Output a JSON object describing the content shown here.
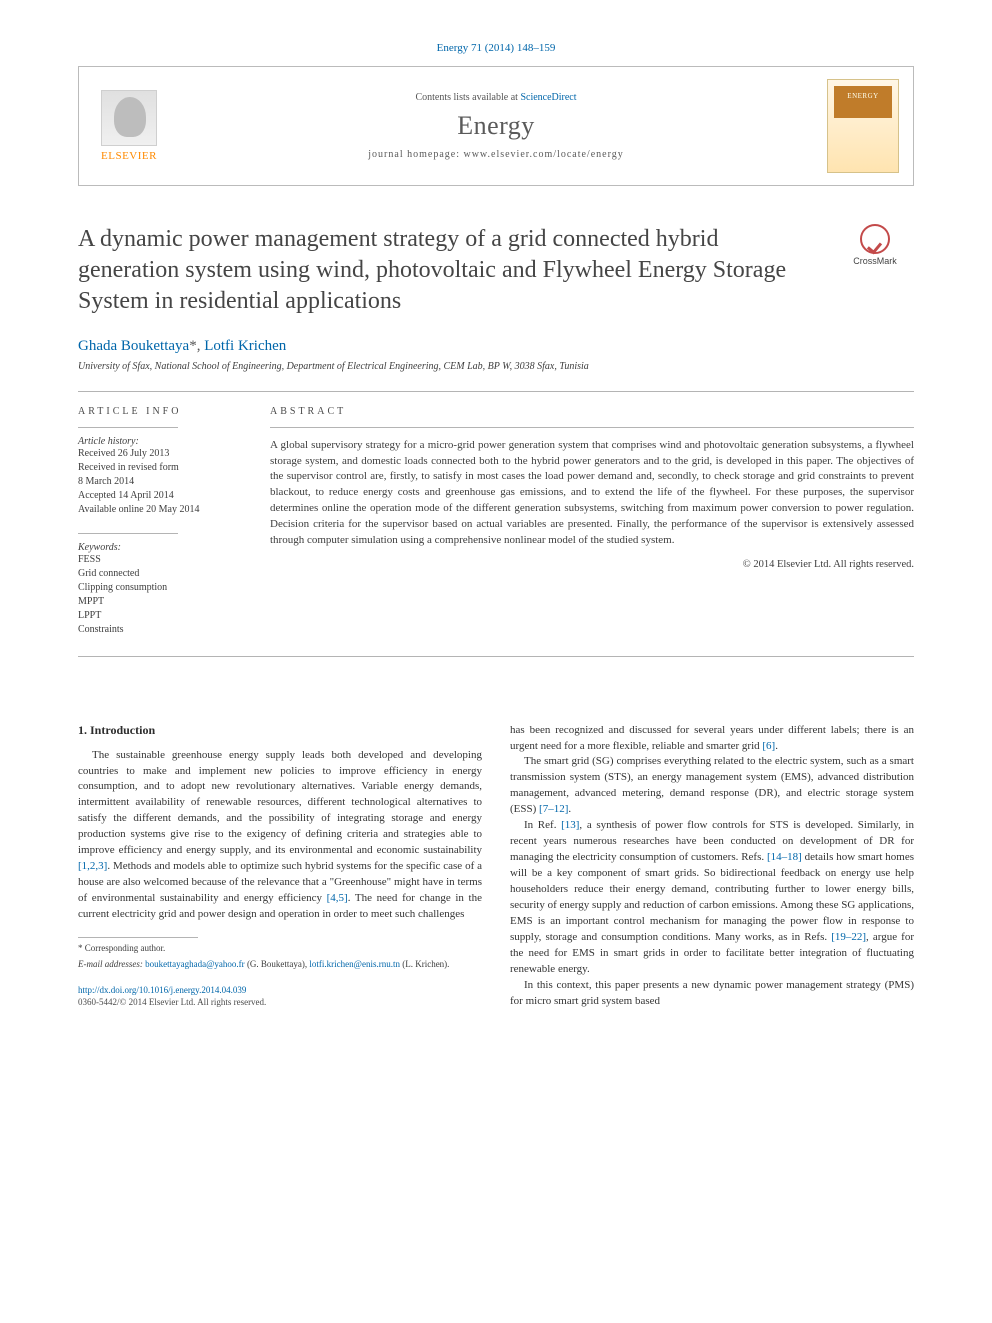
{
  "citation": "Energy 71 (2014) 148–159",
  "header": {
    "publisher": "ELSEVIER",
    "contents_prefix": "Contents lists available at ",
    "contents_link": "ScienceDirect",
    "journal_name": "Energy",
    "homepage_prefix": "journal homepage: ",
    "homepage_url": "www.elsevier.com/locate/energy"
  },
  "title": "A dynamic power management strategy of a grid connected hybrid generation system using wind, photovoltaic and Flywheel Energy Storage System in residential applications",
  "crossmark_label": "CrossMark",
  "authors_html": "Ghada Boukettaya*, Lotfi Krichen",
  "author1": "Ghada Boukettaya",
  "author_sup": "*",
  "author_sep": ", ",
  "author2": "Lotfi Krichen",
  "affiliation": "University of Sfax, National School of Engineering, Department of Electrical Engineering, CEM Lab, BP W, 3038 Sfax, Tunisia",
  "article_info": {
    "head": "ARTICLE INFO",
    "history_label": "Article history:",
    "received": "Received 26 July 2013",
    "revised1": "Received in revised form",
    "revised2": "8 March 2014",
    "accepted": "Accepted 14 April 2014",
    "online": "Available online 20 May 2014",
    "keywords_label": "Keywords:",
    "kw": [
      "FESS",
      "Grid connected",
      "Clipping consumption",
      "MPPT",
      "LPPT",
      "Constraints"
    ]
  },
  "abstract": {
    "head": "ABSTRACT",
    "text": "A global supervisory strategy for a micro-grid power generation system that comprises wind and photovoltaic generation subsystems, a flywheel storage system, and domestic loads connected both to the hybrid power generators and to the grid, is developed in this paper. The objectives of the supervisor control are, firstly, to satisfy in most cases the load power demand and, secondly, to check storage and grid constraints to prevent blackout, to reduce energy costs and greenhouse gas emissions, and to extend the life of the flywheel. For these purposes, the supervisor determines online the operation mode of the different generation subsystems, switching from maximum power conversion to power regulation. Decision criteria for the supervisor based on actual variables are presented. Finally, the performance of the supervisor is extensively assessed through computer simulation using a comprehensive nonlinear model of the studied system.",
    "copyright": "© 2014 Elsevier Ltd. All rights reserved."
  },
  "section_head": "1. Introduction",
  "col_left": {
    "p1a": "The sustainable greenhouse energy supply leads both developed and developing countries to make and implement new policies to improve efficiency in energy consumption, and to adopt new revolutionary alternatives. Variable energy demands, intermittent availability of renewable resources, different technological alternatives to satisfy the different demands, and the possibility of integrating storage and energy production systems give rise to the exigency of defining criteria and strategies able to improve efficiency and energy supply, and its environmental and economic sustainability ",
    "c1": "[1,2,3]",
    "p1b": ". Methods and models able to optimize such hybrid systems for the specific case of a house are also welcomed because of the relevance that a \"Greenhouse\" might have in terms of environmental sustainability and energy efficiency ",
    "c2": "[4,5]",
    "p1c": ". The need for change in the current electricity grid and power design and operation in order to meet such challenges"
  },
  "col_right": {
    "p1a": "has been recognized and discussed for several years under different labels; there is an urgent need for a more flexible, reliable and smarter grid ",
    "c1": "[6]",
    "p1b": ".",
    "p2a": "The smart grid (SG) comprises everything related to the electric system, such as a smart transmission system (STS), an energy management system (EMS), advanced distribution management, advanced metering, demand response (DR), and electric storage system (ESS) ",
    "c2": "[7–12]",
    "p2b": ".",
    "p3a": "In Ref. ",
    "c3": "[13]",
    "p3b": ", a synthesis of power flow controls for STS is developed. Similarly, in recent years numerous researches have been conducted on development of DR for managing the electricity consumption of customers. Refs. ",
    "c4": "[14–18]",
    "p3c": " details how smart homes will be a key component of smart grids. So bidirectional feedback on energy use help householders reduce their energy demand, contributing further to lower energy bills, security of energy supply and reduction of carbon emissions. Among these SG applications, EMS is an important control mechanism for managing the power flow in response to supply, storage and consumption conditions. Many works, as in Refs. ",
    "c5": "[19–22]",
    "p3d": ", argue for the need for EMS in smart grids in order to facilitate better integration of fluctuating renewable energy.",
    "p4": "In this context, this paper presents a new dynamic power management strategy (PMS) for micro smart grid system based"
  },
  "footnotes": {
    "corr": "* Corresponding author.",
    "email_label": "E-mail addresses:",
    "email1": "boukettayaghada@yahoo.fr",
    "name1": " (G. Boukettaya), ",
    "email2": "lotfi.krichen@enis.rnu.tn",
    "name2": " (L. Krichen)."
  },
  "doi": {
    "link": "http://dx.doi.org/10.1016/j.energy.2014.04.039",
    "line2": "0360-5442/© 2014 Elsevier Ltd. All rights reserved."
  },
  "colors": {
    "link": "#0066aa",
    "orange": "#ff8a00",
    "text": "#3d3d3d",
    "heading": "#454545"
  }
}
